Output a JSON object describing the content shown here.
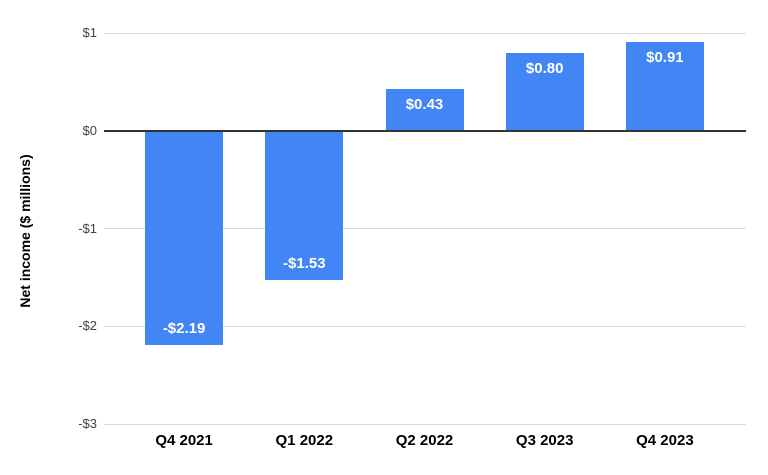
{
  "chart_data": {
    "type": "bar",
    "title": "",
    "xlabel": "",
    "ylabel": "Net income ($ millions)",
    "categories": [
      "Q4 2021",
      "Q1 2022",
      "Q2 2022",
      "Q3 2023",
      "Q4 2023"
    ],
    "values": [
      -2.19,
      -1.53,
      0.43,
      0.8,
      0.91
    ],
    "value_labels": [
      "-$2.19",
      "-$1.53",
      "$0.43",
      "$0.80",
      "$0.91"
    ],
    "ylim": [
      -3,
      1
    ],
    "yticks": [
      {
        "value": 1,
        "label": "$1"
      },
      {
        "value": 0,
        "label": "$0"
      },
      {
        "value": -1,
        "label": "-$1"
      },
      {
        "value": -2,
        "label": "-$2"
      },
      {
        "value": -3,
        "label": "-$3"
      }
    ],
    "grid": true,
    "legend": "none",
    "colors": {
      "bar": "#4285f4",
      "value_label": "#ffffff",
      "gridline": "#d9d9d9",
      "zero_line": "#333333",
      "y_tick_text": "#424242",
      "x_tick_text": "#000000",
      "background": "#ffffff"
    }
  }
}
